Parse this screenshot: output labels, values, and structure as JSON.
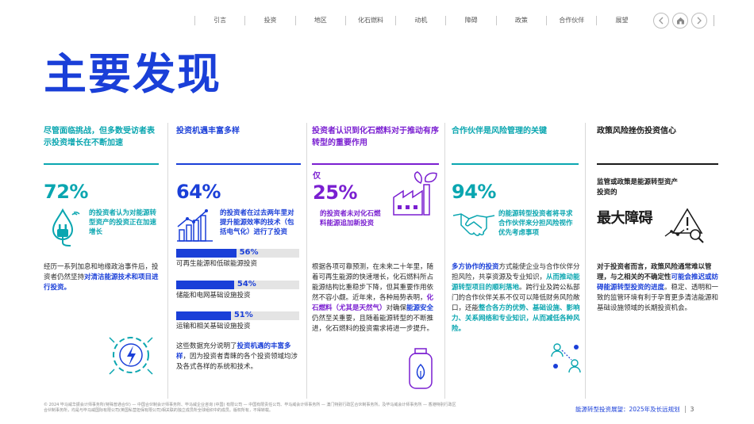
{
  "nav": {
    "items": [
      "引言",
      "投资",
      "地区",
      "化石燃料",
      "动机",
      "障碍",
      "政策",
      "合作伙伴",
      "展望"
    ],
    "prev_icon": "chevron-left-icon",
    "home_icon": "home-icon",
    "next_icon": "chevron-right-icon"
  },
  "page_title": "主要发现",
  "columns": [
    {
      "heading": "尽管面临挑战，但多数受访者表示投资增长在不断加速",
      "color": "#0aa6b0",
      "stat": "72%",
      "stat_text": "的投资者认为对能源转型资产的投资正在加速增长",
      "body_plain": "经历一系列加息和地缘政治事件后，投资者仍然坚持",
      "body_hl": "对清洁能源技术和项目进行投资。",
      "icon": "water-plug-icon",
      "icon2": "energy-gear-icon"
    },
    {
      "heading": "投资机遇丰富多样",
      "color": "#1a3fd8",
      "stat": "64%",
      "stat_text": "的投资者在过去两年里对提升能源效率的技术（包括电气化）进行了投资",
      "icon": "bar-growth-icon",
      "bars": [
        {
          "value": 56,
          "value_label": "56%",
          "label": "可再生能源和低碳能源投资"
        },
        {
          "value": 54,
          "value_label": "54%",
          "label": "储能和电网基础设施投资"
        },
        {
          "value": 51,
          "value_label": "51%",
          "label": "运输和相关基础设施投资"
        }
      ],
      "body_plain1": "这些数据充分说明了",
      "body_hl": "投资机遇的丰富多样",
      "body_plain2": "，因为投资者青睐的各个投资领域均涉及各式各样的系统和技术。"
    },
    {
      "heading": "投资者认识到化石燃料对于推动有序转型的重要作用",
      "color": "#7a1fd1",
      "stat_prefix": "仅",
      "stat": "25%",
      "stat_text": "的投资者未对化石燃料能源追加新投资",
      "icon": "factory-leaf-icon",
      "icon2": "gas-cylinder-icon",
      "body_a": "根据各项可靠预测，在未来二十年里，随着可再生能源的快速增长，化石燃料所占能源结构比重稳步下降，但其重要作用依然不容小觑。近年来，各种局势表明，",
      "body_hl1": "化石燃料（尤其是天然气）",
      "body_b": "对确保",
      "body_hl2": "能源安全",
      "body_c": "仍然至关重要，且随着能源转型的不断推进，化石燃料的投资需求将进一步提升。"
    },
    {
      "heading": "合作伙伴是风险管理的关键",
      "color": "#0aa6b0",
      "stat": "94%",
      "stat_text": "的能源转型投资者将寻求合作伙伴来分担风险视作优先考虑事项",
      "icon": "handshake-icon",
      "icon2": "people-network-icon",
      "body_hl1": "多方协作的投资",
      "body_a": "方式能使企业与合作伙伴分担风险，共享资源及专业知识，",
      "body_hl2": "从而推动能源转型项目的顺利落地",
      "body_b": "。跨行业及跨公私部门的合作伙伴关系不仅可以降低财务风险敞口，还能",
      "body_hl3": "整合各方的优势、基础设施、影响力、关系网络和专业知识，从而减低各种风险。"
    },
    {
      "heading": "政策风险挫伤投资信心",
      "color": "#1a1a1a",
      "lead": "监管或政策是能源转型资产投资的",
      "big": "最大障碍",
      "icon": "warning-search-icon",
      "body_bold": "对于投资者而言，政策风险通常难以管理，与之相关的不确定性",
      "body_hl": "可能会推迟或妨碍能源转型投资的进度",
      "body_rest": "。稳定、透明和一致的监管环境有利于孕育更多清洁能源和基础设施领域的长期投资机会。"
    }
  ],
  "footer": {
    "legal": "© 2024 毕马威华振会计师事务所(特殊普通合伙) — 中国合伙制会计师事务所、毕马威企业咨询 (中国) 有限公司 — 中国有限责任公司、毕马威会计师事务所 — 澳门特别行政区合伙制事务所，及毕马威会计师事务所 — 香港特别行政区合伙制事务所，均是与毕马威国际有限公司(英国私营担保有限公司)相关联的独立成员所全球组织中的成员。版权所有，不得转载。",
    "report": "能源转型投资展望：2025年及长远规划",
    "page": "3"
  },
  "colors": {
    "blue": "#1a3fd8",
    "teal": "#0aa6b0",
    "purple": "#7a1fd1",
    "dark": "#1a1a1a"
  }
}
